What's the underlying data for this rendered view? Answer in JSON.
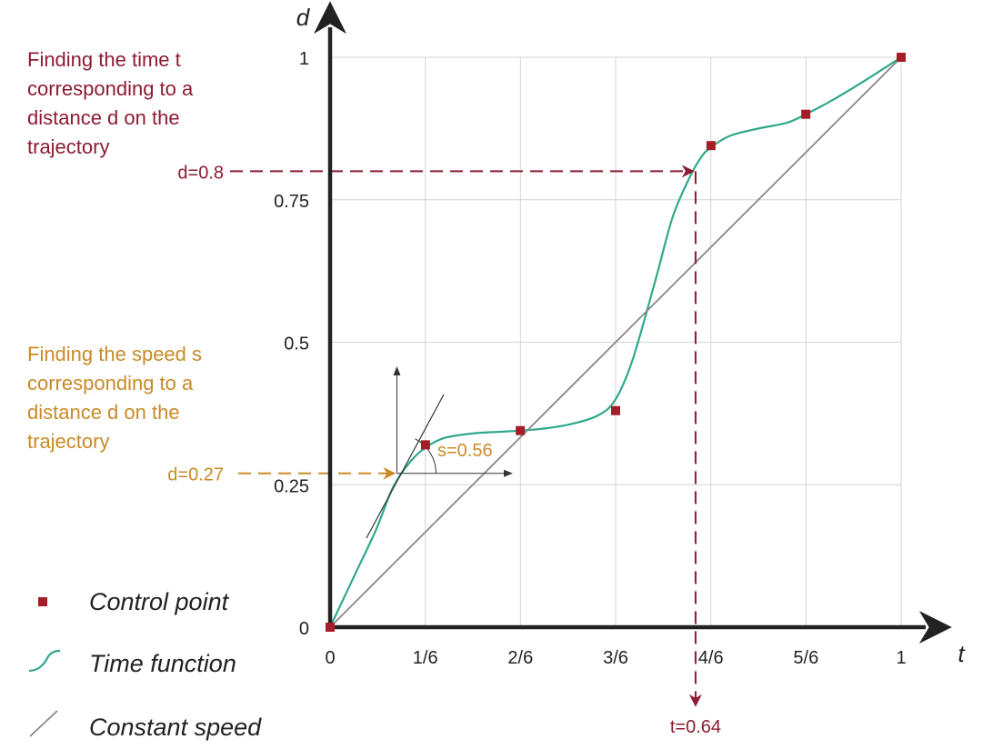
{
  "chart_data": {
    "type": "line",
    "title": "",
    "xlabel": "t",
    "ylabel": "d",
    "xlim": [
      0,
      1
    ],
    "ylim": [
      0,
      1
    ],
    "x_ticks": [
      {
        "value": 0,
        "label": "0"
      },
      {
        "value": 0.1667,
        "label": "1/6"
      },
      {
        "value": 0.3333,
        "label": "2/6"
      },
      {
        "value": 0.5,
        "label": "3/6"
      },
      {
        "value": 0.6667,
        "label": "4/6"
      },
      {
        "value": 0.8333,
        "label": "5/6"
      },
      {
        "value": 1,
        "label": "1"
      }
    ],
    "y_ticks": [
      {
        "value": 0,
        "label": "0"
      },
      {
        "value": 0.25,
        "label": "0.25"
      },
      {
        "value": 0.5,
        "label": "0.5"
      },
      {
        "value": 0.75,
        "label": "0.75"
      },
      {
        "value": 1,
        "label": "1"
      }
    ],
    "grid": true,
    "control_points": [
      {
        "x": 0,
        "y": 0
      },
      {
        "x": 0.167,
        "y": 0.32
      },
      {
        "x": 0.333,
        "y": 0.345
      },
      {
        "x": 0.5,
        "y": 0.38
      },
      {
        "x": 0.667,
        "y": 0.845
      },
      {
        "x": 0.833,
        "y": 0.9
      },
      {
        "x": 1,
        "y": 1
      }
    ],
    "series": [
      {
        "name": "Time function",
        "color": "#2fa88c",
        "x": [
          0,
          0.04,
          0.08,
          0.11,
          0.14,
          0.167,
          0.2,
          0.25,
          0.3,
          0.333,
          0.37,
          0.42,
          0.47,
          0.5,
          0.53,
          0.57,
          0.6,
          0.63,
          0.65,
          0.667,
          0.7,
          0.75,
          0.8,
          0.833,
          0.88,
          0.93,
          1
        ],
        "y": [
          0,
          0.085,
          0.17,
          0.245,
          0.29,
          0.315,
          0.332,
          0.34,
          0.343,
          0.345,
          0.348,
          0.356,
          0.372,
          0.4,
          0.47,
          0.61,
          0.72,
          0.79,
          0.825,
          0.842,
          0.862,
          0.875,
          0.885,
          0.9,
          0.925,
          0.955,
          1
        ]
      },
      {
        "name": "Constant speed",
        "color": "#888888",
        "x": [
          0,
          1
        ],
        "y": [
          0,
          1
        ]
      }
    ],
    "annotations": {
      "time_lookup": {
        "d_value": 0.8,
        "t_value": 0.64,
        "d_label": "d=0.8",
        "t_label": "t=0.64",
        "color": "#8c1c33",
        "note": "Finding the time t\ncorresponding to a\ndistance d on the\ntrajectory"
      },
      "speed_lookup": {
        "d_value": 0.27,
        "t_value": 0.117,
        "speed": 0.56,
        "d_label": "d=0.27",
        "s_label": "s=0.56",
        "color": "#c98a27",
        "note": "Finding the speed s\ncorresponding to a\ndistance d on the\ntrajectory"
      }
    },
    "legend": [
      {
        "marker": "square",
        "label": "Control point",
        "color": "#a61d2a"
      },
      {
        "marker": "curve",
        "label": "Time function",
        "color": "#2fa88c"
      },
      {
        "marker": "line",
        "label": "Constant speed",
        "color": "#888888"
      }
    ],
    "legend_position": "bottom-left"
  }
}
